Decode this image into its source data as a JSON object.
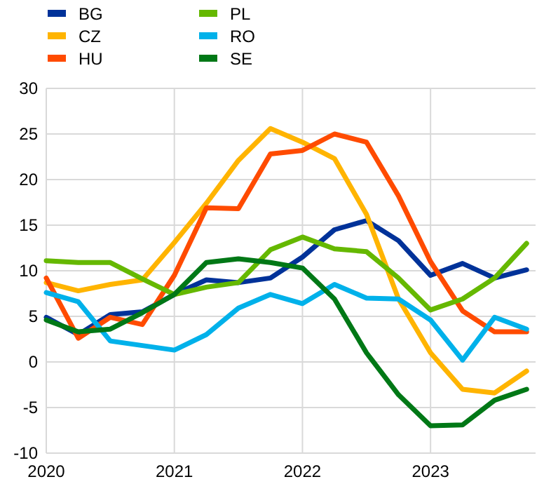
{
  "chart_data": {
    "type": "line",
    "x": [
      2020,
      2020.25,
      2020.5,
      2020.75,
      2021,
      2021.25,
      2021.5,
      2021.75,
      2022,
      2022.25,
      2022.5,
      2022.75,
      2023,
      2023.25,
      2023.5,
      2023.75
    ],
    "series": [
      {
        "name": "BG",
        "color": "#003299",
        "values": [
          4.9,
          3.0,
          5.2,
          5.5,
          7.4,
          9.0,
          8.7,
          9.2,
          11.5,
          14.5,
          15.5,
          13.3,
          9.5,
          10.8,
          9.2,
          10.1
        ]
      },
      {
        "name": "CZ",
        "color": "#ffb400",
        "values": [
          8.7,
          7.8,
          8.5,
          9.0,
          13.1,
          17.4,
          22.1,
          25.6,
          24.1,
          22.3,
          16.2,
          6.9,
          1.0,
          -3.0,
          -3.4,
          -1.0
        ]
      },
      {
        "name": "HU",
        "color": "#ff4b00",
        "values": [
          9.2,
          2.6,
          4.9,
          4.1,
          9.5,
          16.9,
          16.8,
          22.8,
          23.2,
          25.0,
          24.1,
          18.2,
          11.0,
          5.6,
          3.3,
          3.3
        ]
      },
      {
        "name": "PL",
        "color": "#65b800",
        "values": [
          11.1,
          10.9,
          10.9,
          9.1,
          7.4,
          8.2,
          8.7,
          12.3,
          13.7,
          12.4,
          12.1,
          9.2,
          5.7,
          6.9,
          9.2,
          13.0
        ]
      },
      {
        "name": "RO",
        "color": "#00b1ea",
        "values": [
          7.6,
          6.6,
          2.3,
          1.8,
          1.3,
          3.0,
          5.9,
          7.4,
          6.4,
          8.5,
          7.0,
          6.9,
          4.6,
          0.2,
          4.9,
          3.6
        ]
      },
      {
        "name": "SE",
        "color": "#007816",
        "values": [
          4.6,
          3.3,
          3.6,
          5.4,
          7.4,
          10.9,
          11.3,
          10.9,
          10.3,
          6.9,
          1.0,
          -3.6,
          -7.0,
          -6.9,
          -4.2,
          -3.0
        ]
      }
    ],
    "xlim": [
      2020,
      2023.82
    ],
    "xticks": [
      2020,
      2021,
      2022,
      2023
    ],
    "ylim": [
      -10,
      30
    ],
    "yticks": [
      -10,
      -5,
      0,
      5,
      10,
      15,
      20,
      25,
      30
    ],
    "grid": true,
    "legend": "top",
    "marker": "none",
    "line_style": "solid"
  }
}
